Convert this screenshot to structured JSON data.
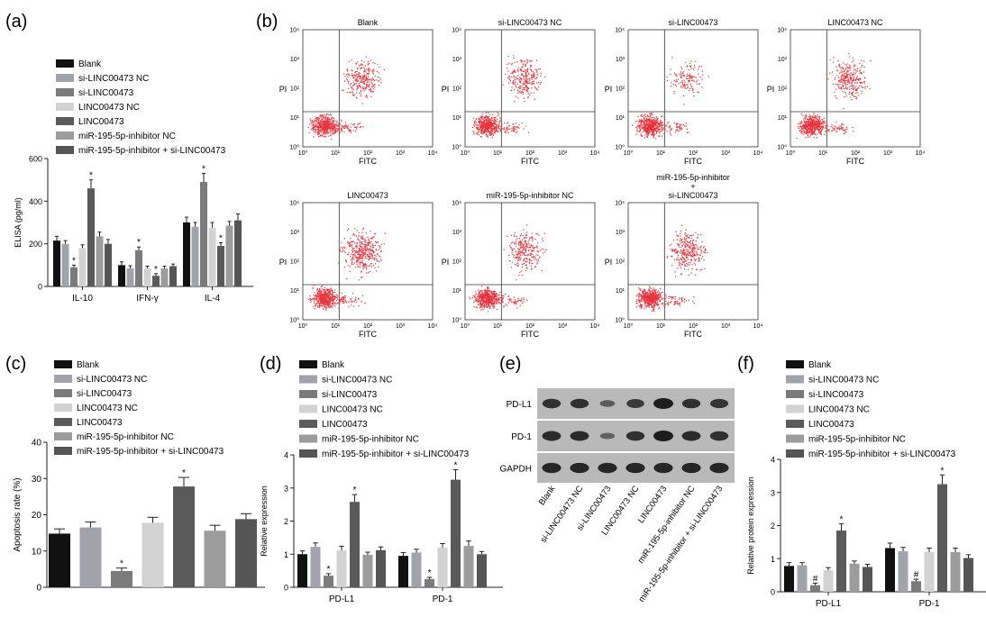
{
  "panel_labels": [
    "(a)",
    "(b)",
    "(c)",
    "(d)",
    "(e)",
    "(f)"
  ],
  "group_names": [
    "Blank",
    "si-LINC00473 NC",
    "si-LINC00473",
    "LINC00473 NC",
    "LINC00473",
    "miR-195-5p-inhibitor NC",
    "miR-195-5p-inhibitor + si-LINC00473"
  ],
  "group_colors": [
    "#111111",
    "#a2a2aa",
    "#7b7b7b",
    "#d2d2d2",
    "#5a5a5a",
    "#9c9c9c",
    "#555555"
  ],
  "sig_mark": "*",
  "sig_mark_pd1": "#",
  "chart_data": [
    {
      "panel": "(a)",
      "type": "bar",
      "ylabel": "ELISA (pg/ml)",
      "ylim": [
        0,
        600
      ],
      "yticks": [
        0,
        200,
        400,
        600
      ],
      "categories": [
        "IL-10",
        "IFN-γ",
        "IL-4"
      ],
      "series": [
        {
          "name": "Blank",
          "values": [
            215,
            100,
            300
          ],
          "errors": [
            20,
            15,
            25
          ]
        },
        {
          "name": "si-LINC00473 NC",
          "values": [
            200,
            85,
            280
          ],
          "errors": [
            15,
            12,
            20
          ]
        },
        {
          "name": "si-LINC00473",
          "values": [
            90,
            170,
            490
          ],
          "errors": [
            10,
            15,
            40
          ]
        },
        {
          "name": "LINC00473 NC",
          "values": [
            180,
            85,
            275
          ],
          "errors": [
            15,
            10,
            25
          ]
        },
        {
          "name": "LINC00473",
          "values": [
            460,
            50,
            190
          ],
          "errors": [
            40,
            10,
            15
          ]
        },
        {
          "name": "miR-195-5p-inhibitor NC",
          "values": [
            235,
            85,
            285
          ],
          "errors": [
            20,
            10,
            20
          ]
        },
        {
          "name": "miR-195-5p-inhibitor + si-LINC00473",
          "values": [
            200,
            95,
            310
          ],
          "errors": [
            20,
            10,
            30
          ]
        }
      ],
      "sig": [
        [
          2,
          0
        ],
        [
          4,
          0
        ],
        [
          2,
          1
        ],
        [
          4,
          1
        ],
        [
          2,
          2
        ],
        [
          4,
          2
        ]
      ]
    },
    {
      "panel": "(c)",
      "type": "bar",
      "ylabel": "Apoptosis rate (%)",
      "ylim": [
        0,
        40
      ],
      "yticks": [
        0,
        10,
        20,
        30,
        40
      ],
      "categories": [
        "Blank",
        "si-LINC00473 NC",
        "si-LINC00473",
        "LINC00473 NC",
        "LINC00473",
        "miR-195-5p-inhibitor NC",
        "miR-195-5p-inhibitor + si-LINC00473"
      ],
      "values": [
        14.8,
        16.5,
        4.5,
        17.8,
        27.8,
        15.6,
        18.8
      ],
      "errors": [
        1.3,
        1.5,
        0.8,
        1.5,
        2.5,
        1.5,
        1.5
      ],
      "sig": [
        2,
        4
      ]
    },
    {
      "panel": "(d)",
      "type": "bar",
      "ylabel": "Relative expression",
      "ylim": [
        0,
        4
      ],
      "yticks": [
        0,
        1,
        2,
        3,
        4
      ],
      "categories": [
        "PD-L1",
        "PD-1"
      ],
      "series": [
        {
          "name": "Blank",
          "values": [
            1.0,
            0.95
          ],
          "errors": [
            0.1,
            0.1
          ]
        },
        {
          "name": "si-LINC00473 NC",
          "values": [
            1.22,
            1.05
          ],
          "errors": [
            0.12,
            0.1
          ]
        },
        {
          "name": "si-LINC00473",
          "values": [
            0.35,
            0.25
          ],
          "errors": [
            0.06,
            0.05
          ]
        },
        {
          "name": "LINC00473 NC",
          "values": [
            1.12,
            1.2
          ],
          "errors": [
            0.12,
            0.12
          ]
        },
        {
          "name": "LINC00473",
          "values": [
            2.58,
            3.25
          ],
          "errors": [
            0.22,
            0.3
          ]
        },
        {
          "name": "miR-195-5p-inhibitor NC",
          "values": [
            0.98,
            1.25
          ],
          "errors": [
            0.08,
            0.15
          ]
        },
        {
          "name": "miR-195-5p-inhibitor + si-LINC00473",
          "values": [
            1.12,
            1.0
          ],
          "errors": [
            0.1,
            0.08
          ]
        }
      ],
      "sig": [
        [
          2,
          0
        ],
        [
          4,
          0
        ],
        [
          2,
          1
        ],
        [
          4,
          1
        ]
      ]
    },
    {
      "panel": "(f)",
      "type": "bar",
      "ylabel": "Relative protein expression",
      "ylim": [
        0,
        4
      ],
      "yticks": [
        0,
        1,
        2,
        3,
        4
      ],
      "categories": [
        "PD-L1",
        "PD-1"
      ],
      "series": [
        {
          "name": "Blank",
          "values": [
            0.78,
            1.32
          ],
          "errors": [
            0.1,
            0.15
          ]
        },
        {
          "name": "si-LINC00473 NC",
          "values": [
            0.8,
            1.22
          ],
          "errors": [
            0.08,
            0.12
          ]
        },
        {
          "name": "si-LINC00473",
          "values": [
            0.2,
            0.32
          ],
          "errors": [
            0.06,
            0.06
          ]
        },
        {
          "name": "LINC00473 NC",
          "values": [
            0.65,
            1.2
          ],
          "errors": [
            0.08,
            0.12
          ]
        },
        {
          "name": "LINC00473",
          "values": [
            1.85,
            3.25
          ],
          "errors": [
            0.2,
            0.28
          ]
        },
        {
          "name": "miR-195-5p-inhibitor NC",
          "values": [
            0.85,
            1.2
          ],
          "errors": [
            0.08,
            0.12
          ]
        },
        {
          "name": "miR-195-5p-inhibitor + si-LINC00473",
          "values": [
            0.75,
            1.02
          ],
          "errors": [
            0.08,
            0.1
          ]
        }
      ],
      "sig": [
        [
          2,
          0
        ],
        [
          4,
          0
        ],
        [
          2,
          1
        ],
        [
          4,
          1
        ]
      ]
    }
  ],
  "flow_plots": {
    "xlabel": "FITC",
    "ylabel": "PI",
    "ticks": [
      "10⁰",
      "10¹",
      "10²",
      "10³",
      "10⁴"
    ],
    "titles": [
      "Blank",
      "si-LINC00473 NC",
      "si-LINC00473",
      "LINC00473 NC",
      "LINC00473",
      "miR-195-5p-inhibitor NC",
      "miR-195-5p-inhibitor\n+\nsi-LINC00473"
    ],
    "dot_color": "#e8323c"
  },
  "western_blot": {
    "rows": [
      "PD-L1",
      "PD-1",
      "GAPDH"
    ],
    "lanes": [
      "Blank",
      "si-LINC00473 NC",
      "si-LINC00473",
      "LINC00473 NC",
      "LINC00473",
      "miR-195-5p-inhibitor NC",
      "miR-195-5p-inhibitor + si-LINC00473"
    ],
    "band_intensity": [
      [
        0.8,
        0.8,
        0.35,
        0.7,
        1.0,
        0.8,
        0.75
      ],
      [
        0.85,
        0.85,
        0.3,
        0.8,
        1.0,
        0.85,
        0.8
      ],
      [
        0.9,
        0.9,
        0.9,
        0.9,
        0.9,
        0.9,
        0.9
      ]
    ]
  }
}
